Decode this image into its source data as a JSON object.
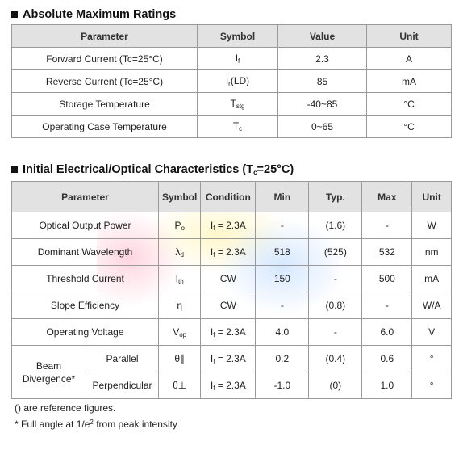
{
  "section1": {
    "title": "Absolute Maximum Ratings",
    "headers": [
      "Parameter",
      "Symbol",
      "Value",
      "Unit"
    ],
    "rows": [
      {
        "parameter": "Forward Current (Tc=25°C)",
        "symbol_main": "I",
        "symbol_sub": "f",
        "symbol_suffix": "",
        "value": "2.3",
        "unit": "A"
      },
      {
        "parameter": "Reverse Current (Tc=25°C)",
        "symbol_main": "I",
        "symbol_sub": "r",
        "symbol_suffix": "(LD)",
        "value": "85",
        "unit": "mA"
      },
      {
        "parameter": "Storage Temperature",
        "symbol_main": "T",
        "symbol_sub": "stg",
        "symbol_suffix": "",
        "value": "-40~85",
        "unit": "°C"
      },
      {
        "parameter": "Operating Case Temperature",
        "symbol_main": "T",
        "symbol_sub": "c",
        "symbol_suffix": "",
        "value": "0~65",
        "unit": "°C"
      }
    ]
  },
  "section2": {
    "title_main": "Initial Electrical/Optical Characteristics (T",
    "title_sub": "c",
    "title_end": "=25°C)",
    "headers": [
      "Parameter",
      "Symbol",
      "Condition",
      "Min",
      "Typ.",
      "Max",
      "Unit"
    ],
    "rows": [
      {
        "parameter": "Optical Output Power",
        "symbol_main": "P",
        "symbol_sub": "o",
        "cond_main": "I",
        "cond_sub": "f",
        "cond_rest": " = 2.3A",
        "min": "-",
        "typ": "(1.6)",
        "max": "-",
        "unit": "W"
      },
      {
        "parameter": "Dominant Wavelength",
        "symbol_main": "λ",
        "symbol_sub": "d",
        "cond_main": "I",
        "cond_sub": "f",
        "cond_rest": " = 2.3A",
        "min": "518",
        "typ": "(525)",
        "max": "532",
        "unit": "nm"
      },
      {
        "parameter": "Threshold Current",
        "symbol_main": "I",
        "symbol_sub": "th",
        "cond_main": "CW",
        "cond_sub": "",
        "cond_rest": "",
        "min": "150",
        "typ": "-",
        "max": "500",
        "unit": "mA"
      },
      {
        "parameter": "Slope Efficiency",
        "symbol_main": "η",
        "symbol_sub": "",
        "cond_main": "CW",
        "cond_sub": "",
        "cond_rest": "",
        "min": "-",
        "typ": "(0.8)",
        "max": "-",
        "unit": "W/A"
      },
      {
        "parameter": "Operating Voltage",
        "symbol_main": "V",
        "symbol_sub": "op",
        "cond_main": "I",
        "cond_sub": "f",
        "cond_rest": " = 2.3A",
        "min": "4.0",
        "typ": "-",
        "max": "6.0",
        "unit": "V"
      }
    ],
    "beam": {
      "label_line1": "Beam",
      "label_line2": "Divergence*",
      "rows": [
        {
          "sub_param": "Parallel",
          "symbol": "θ∥",
          "cond_main": "I",
          "cond_sub": "f",
          "cond_rest": " = 2.3A",
          "min": "0.2",
          "typ": "(0.4)",
          "max": "0.6",
          "unit": "°"
        },
        {
          "sub_param": "Perpendicular",
          "symbol": "θ⊥",
          "cond_main": "I",
          "cond_sub": "f",
          "cond_rest": " = 2.3A",
          "min": "-1.0",
          "typ": "(0)",
          "max": "1.0",
          "unit": "°"
        }
      ]
    }
  },
  "notes": {
    "line1": "() are reference figures.",
    "line2_pre": "* Full angle at 1/e",
    "line2_sup": "2",
    "line2_post": " from peak intensity"
  }
}
